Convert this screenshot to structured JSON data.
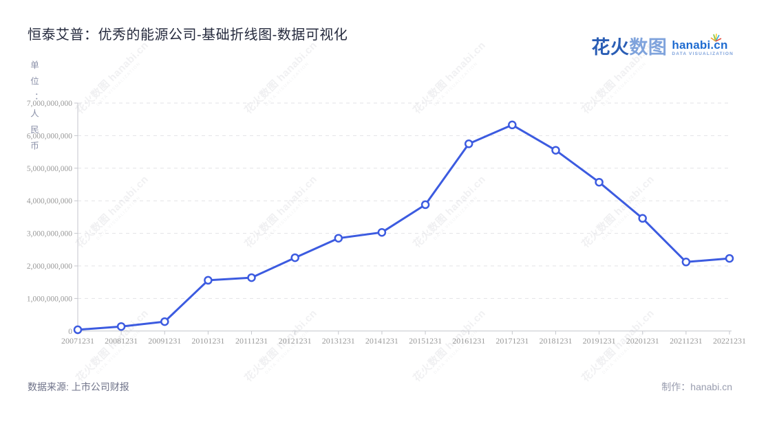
{
  "title": "恒泰艾普：优秀的能源公司-基础折线图-数据可视化",
  "logo": {
    "zh_bold": "花火",
    "zh_light": "数图",
    "latin": "hanabi.cn",
    "tagline": "DATA VISUALIZATION"
  },
  "watermark": {
    "text": "花火数图 hanabi.cn",
    "tagline": "DATA VISUALIZATION"
  },
  "footer": {
    "source": "数据来源: 上市公司财报",
    "credit": "制作：hanabi.cn"
  },
  "colors": {
    "line": "#3C5BE0",
    "point_fill": "#ffffff",
    "grid": "#E2E2E6",
    "axis_line": "#C4C6CC",
    "axis_label": "#999999",
    "title_text": "#252A3D",
    "logo_dark_blue": "#2B5EB5",
    "logo_light_blue": "#7FA3DC",
    "logo_latin_blue": "#1E6BD0"
  },
  "chart_data": {
    "type": "line",
    "title": "恒泰艾普：优秀的能源公司-基础折线图-数据可视化",
    "unit_label": "单位：人民币",
    "xlabel": "",
    "ylabel": "单位：人民币",
    "categories": [
      "20071231",
      "20081231",
      "20091231",
      "20101231",
      "20111231",
      "20121231",
      "20131231",
      "20141231",
      "20151231",
      "20161231",
      "20171231",
      "20181231",
      "20191231",
      "20201231",
      "20211231",
      "20221231"
    ],
    "values": [
      40000000,
      140000000,
      290000000,
      1560000000,
      1640000000,
      2250000000,
      2850000000,
      3030000000,
      3880000000,
      5750000000,
      6330000000,
      5550000000,
      4570000000,
      3460000000,
      2120000000,
      2230000000
    ],
    "ylim": [
      0,
      7000000000
    ],
    "y_tick_interval": 1000000000,
    "y_tick_labels": [
      "0",
      "1,000,000,000",
      "2,000,000,000",
      "3,000,000,000",
      "4,000,000,000",
      "5,000,000,000",
      "6,000,000,000",
      "7,000,000,000"
    ],
    "grid": true,
    "grid_style": "dashed",
    "legend": false,
    "line_width": 3,
    "point_radius": 5
  }
}
